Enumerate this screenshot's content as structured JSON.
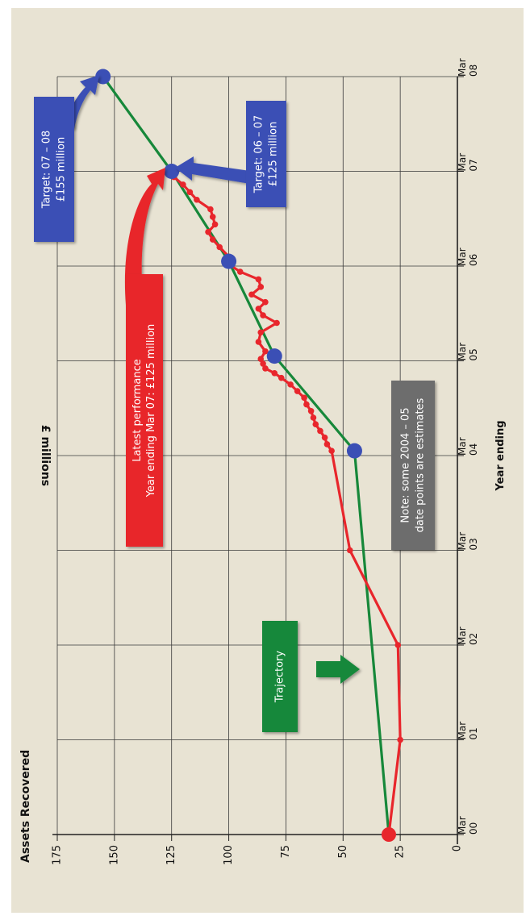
{
  "chart_data": {
    "type": "line",
    "title": "Assets Recovered",
    "xlabel": "Year ending",
    "ylabel": "£ millions",
    "ylim": [
      0,
      175
    ],
    "y_ticks": [
      "0",
      "25",
      "50",
      "75",
      "100",
      "125",
      "150",
      "175"
    ],
    "x_ticks": [
      {
        "label": [
          "Mar",
          "00"
        ],
        "x": 0
      },
      {
        "label": [
          "Mar",
          "01"
        ],
        "x": 1
      },
      {
        "label": [
          "Mar",
          "02"
        ],
        "x": 2
      },
      {
        "label": [
          "Mar",
          "03"
        ],
        "x": 3
      },
      {
        "label": [
          "Mar",
          "04"
        ],
        "x": 4
      },
      {
        "label": [
          "Mar",
          "05"
        ],
        "x": 5
      },
      {
        "label": [
          "Mar",
          "06"
        ],
        "x": 6
      },
      {
        "label": [
          "Mar",
          "07"
        ],
        "x": 7
      },
      {
        "label": [
          "Mar",
          "08"
        ],
        "x": 8
      }
    ],
    "grid": true,
    "series": [
      {
        "name": "Trajectory",
        "color": "#17883a",
        "points": [
          [
            0,
            30
          ],
          [
            4.05,
            45
          ],
          [
            5.05,
            80
          ],
          [
            6.05,
            100
          ],
          [
            7.0,
            125
          ],
          [
            8.0,
            155
          ]
        ]
      },
      {
        "name": "Latest performance",
        "color": "#e8262c",
        "points": [
          [
            0,
            30
          ],
          [
            1.0,
            25
          ],
          [
            2.0,
            26
          ],
          [
            3.0,
            47
          ],
          [
            4.05,
            55
          ],
          [
            4.12,
            57
          ],
          [
            4.19,
            58
          ],
          [
            4.26,
            60
          ],
          [
            4.33,
            62
          ],
          [
            4.4,
            63
          ],
          [
            4.47,
            64
          ],
          [
            4.54,
            66
          ],
          [
            4.61,
            67
          ],
          [
            4.68,
            70
          ],
          [
            4.75,
            73
          ],
          [
            4.82,
            77
          ],
          [
            4.87,
            80
          ],
          [
            4.92,
            84
          ],
          [
            4.97,
            85
          ],
          [
            5.02,
            86
          ],
          [
            5.1,
            84
          ],
          [
            5.2,
            87
          ],
          [
            5.3,
            86
          ],
          [
            5.4,
            79
          ],
          [
            5.48,
            85
          ],
          [
            5.55,
            87
          ],
          [
            5.62,
            84
          ],
          [
            5.7,
            90
          ],
          [
            5.78,
            86
          ],
          [
            5.86,
            87
          ],
          [
            5.94,
            95
          ],
          [
            6.02,
            100
          ],
          [
            6.1,
            100
          ],
          [
            6.2,
            104
          ],
          [
            6.28,
            107
          ],
          [
            6.36,
            109
          ],
          [
            6.44,
            106
          ],
          [
            6.52,
            107
          ],
          [
            6.6,
            108
          ],
          [
            6.7,
            114
          ],
          [
            6.78,
            117
          ],
          [
            6.86,
            120
          ],
          [
            6.94,
            124
          ],
          [
            7.0,
            125
          ]
        ]
      }
    ],
    "markers": [
      {
        "series": "Trajectory",
        "points": [
          [
            4.05,
            45
          ],
          [
            5.05,
            80
          ],
          [
            6.05,
            100
          ],
          [
            7.0,
            125
          ],
          [
            8.0,
            155
          ]
        ],
        "color": "#3b4fb5"
      },
      {
        "series": "start",
        "points": [
          [
            0,
            30
          ]
        ],
        "color": "#e8262c"
      }
    ]
  },
  "annotations": {
    "trajectory": {
      "lines": [
        "Trajectory"
      ],
      "color": "#17883a"
    },
    "latest": {
      "lines": [
        "Latest performance",
        "Year ending Mar 07: £125 million"
      ],
      "color": "#e8262c"
    },
    "note": {
      "lines": [
        "Note: some 2004 – 05",
        "date points are estimates"
      ],
      "color": "#6d6d6d"
    },
    "target_0607": {
      "lines": [
        "Target: 06 – 07",
        "£125 million"
      ],
      "color": "#3b4fb5"
    },
    "target_0708": {
      "lines": [
        "Target: 07 – 08",
        "£155 million"
      ],
      "color": "#3b4fb5"
    }
  }
}
